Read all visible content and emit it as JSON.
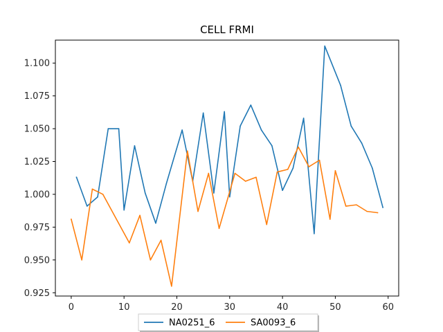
{
  "chart_data": {
    "type": "line",
    "title": "CELL FRMI",
    "xlabel": "",
    "ylabel": "",
    "xlim": [
      -3,
      62
    ],
    "ylim": [
      0.9225,
      1.1175
    ],
    "xticks": [
      0,
      10,
      20,
      30,
      40,
      50,
      60
    ],
    "yticks": [
      0.925,
      0.95,
      0.975,
      1.0,
      1.025,
      1.05,
      1.075,
      1.1
    ],
    "ytick_labels": [
      "0.925",
      "0.950",
      "0.975",
      "1.000",
      "1.025",
      "1.050",
      "1.075",
      "1.100"
    ],
    "grid": false,
    "legend": {
      "placement": "bottom-center",
      "columns": 2
    },
    "series": [
      {
        "name": "NA0251_6",
        "color": "#1f77b4",
        "x": [
          1,
          3,
          5,
          7,
          9,
          10,
          12,
          14,
          16,
          18,
          21,
          23,
          25,
          27,
          29,
          30,
          32,
          34,
          36,
          38,
          40,
          42,
          44,
          46,
          48,
          51,
          53,
          55,
          57,
          59
        ],
        "y": [
          1.013,
          0.991,
          0.998,
          1.05,
          1.05,
          0.988,
          1.037,
          1.001,
          0.978,
          1.008,
          1.049,
          1.01,
          1.062,
          1.001,
          1.063,
          0.998,
          1.052,
          1.068,
          1.049,
          1.037,
          1.003,
          1.02,
          1.058,
          0.97,
          1.113,
          1.083,
          1.052,
          1.039,
          1.02,
          0.99
        ]
      },
      {
        "name": "SA0093_6",
        "color": "#ff7f0e",
        "x": [
          0,
          2,
          4,
          6,
          11,
          13,
          15,
          17,
          19,
          22,
          24,
          26,
          28,
          31,
          33,
          35,
          37,
          39,
          41,
          43,
          45,
          47,
          49,
          50,
          52,
          54,
          56,
          58
        ],
        "y": [
          0.981,
          0.95,
          1.004,
          1.0,
          0.963,
          0.984,
          0.95,
          0.965,
          0.93,
          1.033,
          0.987,
          1.016,
          0.974,
          1.016,
          1.01,
          1.013,
          0.977,
          1.017,
          1.019,
          1.036,
          1.021,
          1.026,
          0.981,
          1.018,
          0.991,
          0.992,
          0.987,
          0.986
        ]
      }
    ]
  }
}
